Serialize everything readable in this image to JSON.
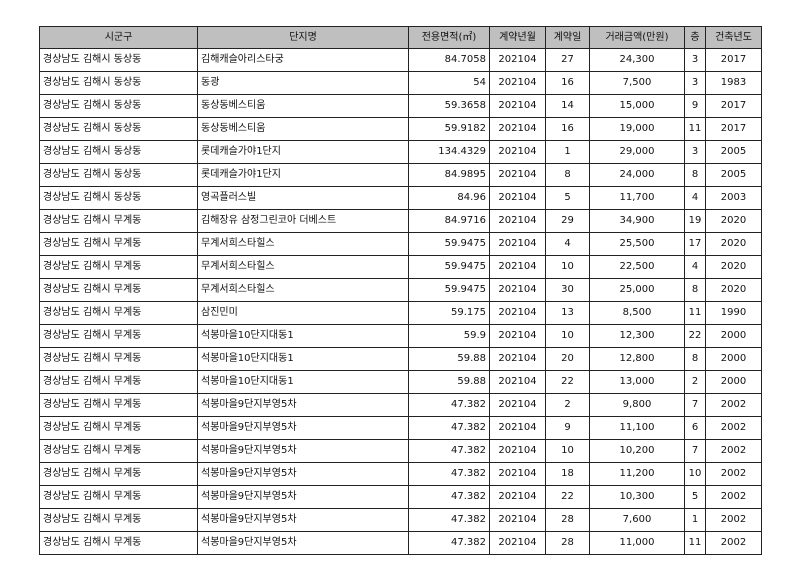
{
  "table": {
    "headers": [
      "시군구",
      "단지명",
      "전용면적(㎡)",
      "계약년월",
      "계약일",
      "거래금액(만원)",
      "층",
      "건축년도"
    ],
    "rows": [
      [
        "경상남도 김해시 동상동",
        "김해캐슬아리스타궁",
        "84.7058",
        "202104",
        "27",
        "24,300",
        "3",
        "2017"
      ],
      [
        "경상남도 김해시 동상동",
        "동광",
        "54",
        "202104",
        "16",
        "7,500",
        "3",
        "1983"
      ],
      [
        "경상남도 김해시 동상동",
        "동상동베스티움",
        "59.3658",
        "202104",
        "14",
        "15,000",
        "9",
        "2017"
      ],
      [
        "경상남도 김해시 동상동",
        "동상동베스티움",
        "59.9182",
        "202104",
        "16",
        "19,000",
        "11",
        "2017"
      ],
      [
        "경상남도 김해시 동상동",
        "롯데캐슬가야1단지",
        "134.4329",
        "202104",
        "1",
        "29,000",
        "3",
        "2005"
      ],
      [
        "경상남도 김해시 동상동",
        "롯데캐슬가야1단지",
        "84.9895",
        "202104",
        "8",
        "24,000",
        "8",
        "2005"
      ],
      [
        "경상남도 김해시 동상동",
        "영곡플러스빌",
        "84.96",
        "202104",
        "5",
        "11,700",
        "4",
        "2003"
      ],
      [
        "경상남도 김해시 무계동",
        "김해장유 삼정그린코아 더베스트",
        "84.9716",
        "202104",
        "29",
        "34,900",
        "19",
        "2020"
      ],
      [
        "경상남도 김해시 무계동",
        "무계서희스타힐스",
        "59.9475",
        "202104",
        "4",
        "25,500",
        "17",
        "2020"
      ],
      [
        "경상남도 김해시 무계동",
        "무계서희스타힐스",
        "59.9475",
        "202104",
        "10",
        "22,500",
        "4",
        "2020"
      ],
      [
        "경상남도 김해시 무계동",
        "무계서희스타힐스",
        "59.9475",
        "202104",
        "30",
        "25,000",
        "8",
        "2020"
      ],
      [
        "경상남도 김해시 무계동",
        "삼진민미",
        "59.175",
        "202104",
        "13",
        "8,500",
        "11",
        "1990"
      ],
      [
        "경상남도 김해시 무계동",
        "석봉마을10단지대동1",
        "59.9",
        "202104",
        "10",
        "12,300",
        "22",
        "2000"
      ],
      [
        "경상남도 김해시 무계동",
        "석봉마을10단지대동1",
        "59.88",
        "202104",
        "20",
        "12,800",
        "8",
        "2000"
      ],
      [
        "경상남도 김해시 무계동",
        "석봉마을10단지대동1",
        "59.88",
        "202104",
        "22",
        "13,000",
        "2",
        "2000"
      ],
      [
        "경상남도 김해시 무계동",
        "석봉마을9단지부영5차",
        "47.382",
        "202104",
        "2",
        "9,800",
        "7",
        "2002"
      ],
      [
        "경상남도 김해시 무계동",
        "석봉마을9단지부영5차",
        "47.382",
        "202104",
        "9",
        "11,100",
        "6",
        "2002"
      ],
      [
        "경상남도 김해시 무계동",
        "석봉마을9단지부영5차",
        "47.382",
        "202104",
        "10",
        "10,200",
        "7",
        "2002"
      ],
      [
        "경상남도 김해시 무계동",
        "석봉마을9단지부영5차",
        "47.382",
        "202104",
        "18",
        "11,200",
        "10",
        "2002"
      ],
      [
        "경상남도 김해시 무계동",
        "석봉마을9단지부영5차",
        "47.382",
        "202104",
        "22",
        "10,300",
        "5",
        "2002"
      ],
      [
        "경상남도 김해시 무계동",
        "석봉마을9단지부영5차",
        "47.382",
        "202104",
        "28",
        "7,600",
        "1",
        "2002"
      ],
      [
        "경상남도 김해시 무계동",
        "석봉마을9단지부영5차",
        "47.382",
        "202104",
        "28",
        "11,000",
        "11",
        "2002"
      ]
    ]
  }
}
